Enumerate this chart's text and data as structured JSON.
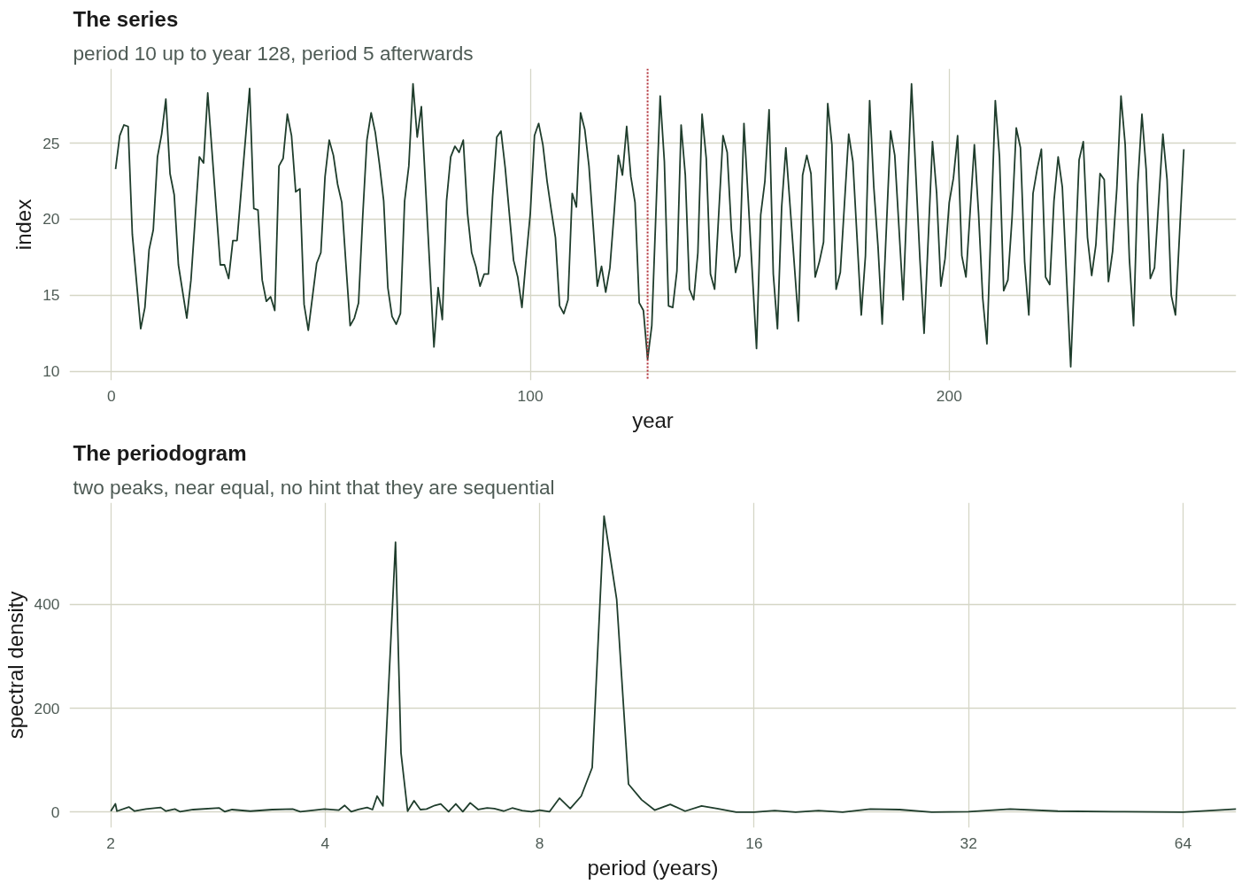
{
  "chart_data": [
    {
      "type": "line",
      "title": "The series",
      "subtitle": "period 10 up to year 128, period 5 afterwards",
      "xlabel": "year",
      "ylabel": "index",
      "x": [
        1,
        2,
        3,
        4,
        5,
        7,
        8,
        9,
        10,
        11,
        12,
        13,
        14,
        15,
        16,
        18,
        19,
        21,
        22,
        23,
        26,
        27,
        28,
        29,
        30,
        33,
        34,
        35,
        36,
        37,
        38,
        39,
        40,
        41,
        42,
        43,
        44,
        45,
        46,
        47,
        48,
        49,
        50,
        51,
        52,
        53,
        54,
        55,
        56,
        57,
        58,
        59,
        60,
        61,
        62,
        63,
        64,
        65,
        66,
        67,
        68,
        69,
        70,
        71,
        72,
        73,
        74,
        77,
        78,
        79,
        80,
        81,
        82,
        83,
        84,
        85,
        86,
        87,
        88,
        89,
        90,
        91,
        92,
        93,
        94,
        96,
        97,
        98,
        99,
        100,
        101,
        102,
        103,
        104,
        105,
        106,
        107,
        108,
        109,
        110,
        111,
        112,
        113,
        114,
        115,
        116,
        117,
        118,
        119,
        120,
        121,
        122,
        123,
        124,
        125,
        126,
        127,
        128,
        129,
        131,
        132,
        133,
        134,
        135,
        136,
        137,
        138,
        139,
        140,
        141,
        142,
        143,
        144,
        146,
        147,
        148,
        149,
        150,
        151,
        154,
        155,
        156,
        157,
        158,
        159,
        160,
        161,
        164,
        165,
        166,
        167,
        168,
        169,
        170,
        171,
        172,
        173,
        174,
        176,
        177,
        179,
        180,
        181,
        182,
        183,
        184,
        186,
        187,
        189,
        191,
        193,
        194,
        196,
        197,
        198,
        199,
        200,
        201,
        202,
        203,
        204,
        206,
        207,
        208,
        209,
        211,
        212,
        213,
        214,
        215,
        216,
        217,
        218,
        219,
        220,
        221,
        222,
        223,
        224,
        225,
        226,
        227,
        229,
        231,
        232,
        233,
        234,
        235,
        236,
        237,
        238,
        239,
        240,
        241,
        242,
        243,
        244,
        245,
        246,
        247,
        248,
        249,
        251,
        252,
        253,
        254,
        256
      ],
      "series": [
        {
          "color": "#1f3d2c",
          "values": [
            23.3,
            25.5,
            26.2,
            26.1,
            19.0,
            12.8,
            14.2,
            18.0,
            19.3,
            24.1,
            25.6,
            27.9,
            23.0,
            21.6,
            17.0,
            13.5,
            16.0,
            24.1,
            23.7,
            28.3,
            17.0,
            17.0,
            16.1,
            18.6,
            18.6,
            28.6,
            20.7,
            20.6,
            16.0,
            14.6,
            14.9,
            14.0,
            23.5,
            24.0,
            26.9,
            25.5,
            21.8,
            22.0,
            14.4,
            12.7,
            14.9,
            17.1,
            17.8,
            22.8,
            25.2,
            24.2,
            22.3,
            21.1,
            17.0,
            13.0,
            13.5,
            14.5,
            20.2,
            25.2,
            27.0,
            25.7,
            23.6,
            21.2,
            15.5,
            13.6,
            13.1,
            13.8,
            21.2,
            23.5,
            28.9,
            25.4,
            27.4,
            11.6,
            15.5,
            13.4,
            21.2,
            24.1,
            24.8,
            24.4,
            25.2,
            20.4,
            17.8,
            16.9,
            15.6,
            16.4,
            16.4,
            21.5,
            25.4,
            25.8,
            23.4,
            17.3,
            16.2,
            14.2,
            17.4,
            20.4,
            25.5,
            26.3,
            24.9,
            22.5,
            20.6,
            18.8,
            14.3,
            13.8,
            14.7,
            21.7,
            20.8,
            27.0,
            25.9,
            23.5,
            19.6,
            15.6,
            16.9,
            15.2,
            16.8,
            20.4,
            24.2,
            22.9,
            26.1,
            22.8,
            21.1,
            14.5,
            14.0,
            10.8,
            13.0,
            28.1,
            23.8,
            14.3,
            14.2,
            16.6,
            26.2,
            22.9,
            15.4,
            14.7,
            17.8,
            26.9,
            24.0,
            16.4,
            15.4,
            25.5,
            24.4,
            19.3,
            16.5,
            17.6,
            26.3,
            11.5,
            20.3,
            22.5,
            27.2,
            16.4,
            12.8,
            20.8,
            24.7,
            13.3,
            22.9,
            24.2,
            23.0,
            16.2,
            17.2,
            18.5,
            27.6,
            24.9,
            15.4,
            16.5,
            25.6,
            23.8,
            13.7,
            17.6,
            27.8,
            22.1,
            18.2,
            13.1,
            25.8,
            24.2,
            14.7,
            28.9,
            17.4,
            12.5,
            25.1,
            21.7,
            15.6,
            17.4,
            21.1,
            22.7,
            25.5,
            17.6,
            16.2,
            24.9,
            20.4,
            14.8,
            11.8,
            27.8,
            24.1,
            15.3,
            16.0,
            20.1,
            26.0,
            24.7,
            17.2,
            13.7,
            21.7,
            23.3,
            24.6,
            16.2,
            15.7,
            21.2,
            24.1,
            22.1,
            10.3,
            23.9,
            25.1,
            18.8,
            16.3,
            18.3,
            23.0,
            22.6,
            15.9,
            17.9,
            22.0,
            28.1,
            24.9,
            17.4,
            13.0,
            22.3,
            26.9,
            23.3,
            16.1,
            16.8,
            25.6,
            22.6,
            15.0,
            13.7,
            24.6
          ]
        }
      ],
      "xlim": [
        -10,
        268.5
      ],
      "ylim": [
        9.4,
        29.9
      ],
      "xticks": [
        0,
        100,
        200
      ],
      "yticks": [
        10,
        15,
        20,
        25
      ],
      "grid": true,
      "ref_lines": [
        {
          "axis": "x",
          "value": 128,
          "color": "#b2333a",
          "line_style": "dotted"
        }
      ]
    },
    {
      "type": "line",
      "title": "The periodogram",
      "subtitle": "two peaks, near equal, no hint that they are sequential",
      "xlabel": "period (years)",
      "ylabel": "spectral density",
      "log": "x",
      "x": [
        2.0,
        2.03,
        2.04,
        2.12,
        2.16,
        2.24,
        2.35,
        2.39,
        2.46,
        2.5,
        2.61,
        2.84,
        2.89,
        2.96,
        3.14,
        3.37,
        3.6,
        3.69,
        3.99,
        4.18,
        4.26,
        4.35,
        4.45,
        4.58,
        4.66,
        4.73,
        4.82,
        5.02,
        5.11,
        5.22,
        5.33,
        5.44,
        5.55,
        5.7,
        5.81,
        5.96,
        6.1,
        6.24,
        6.39,
        6.56,
        6.75,
        6.91,
        7.12,
        7.32,
        7.56,
        7.79,
        8.0,
        8.26,
        8.53,
        8.83,
        9.15,
        9.48,
        9.85,
        10.26,
        10.66,
        11.12,
        11.6,
        12.2,
        12.8,
        13.5,
        14.2,
        15.1,
        16.0,
        17.1,
        18.3,
        19.7,
        21.3,
        23.3,
        25.6,
        28.4,
        32.0,
        36.6,
        42.7,
        51.2,
        64.0,
        76.0
      ],
      "series": [
        {
          "color": "#1f3d2c",
          "values": [
            2,
            16,
            2,
            10,
            2,
            6,
            9,
            2,
            6,
            1,
            5,
            8,
            1,
            5,
            2,
            5,
            6,
            1,
            6,
            4,
            13,
            1,
            5,
            9,
            5,
            31,
            12,
            520,
            114,
            2,
            22,
            5,
            6,
            13,
            16,
            1,
            16,
            1,
            18,
            5,
            8,
            7,
            2,
            8,
            3,
            1,
            4,
            1,
            27,
            7,
            31,
            86,
            570,
            410,
            54,
            24,
            4,
            15,
            2,
            12,
            7,
            0,
            0,
            3,
            0,
            3,
            0,
            6,
            5,
            0,
            1,
            6,
            2,
            1,
            0,
            6
          ]
        }
      ],
      "xlim": [
        1.75,
        76
      ],
      "ylim": [
        -30,
        596
      ],
      "xticks": [
        2,
        4,
        8,
        16,
        32,
        64
      ],
      "yticks": [
        0,
        200,
        400
      ],
      "grid": true
    }
  ]
}
